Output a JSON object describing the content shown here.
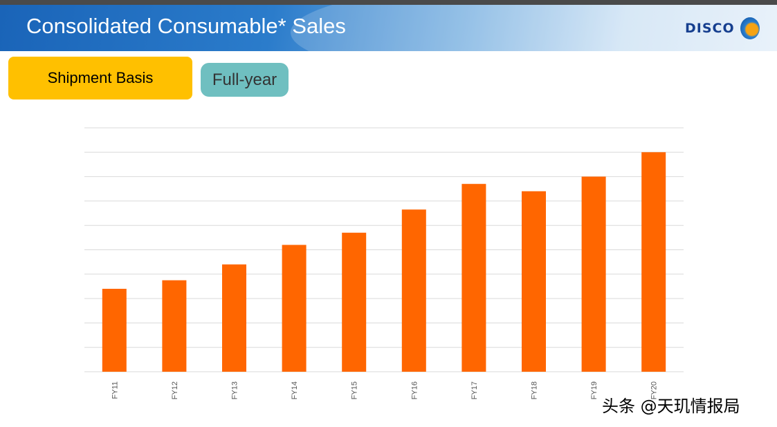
{
  "header": {
    "title": "Consolidated Consumable* Sales",
    "logo_text": "DISCO"
  },
  "buttons": {
    "basis": "Shipment Basis",
    "period": "Full-year"
  },
  "colors": {
    "bar": "#ff6600",
    "grid": "#d9d9d9",
    "header": "#1a64b8",
    "basis_button": "#ffc000",
    "period_button": "#6fbfc0"
  },
  "watermark": "头条 @天玑情报局",
  "chart_data": {
    "type": "bar",
    "title": "",
    "xlabel": "",
    "ylabel": "",
    "categories": [
      "FY11",
      "FY12",
      "FY13",
      "FY14",
      "FY15",
      "FY16",
      "FY17",
      "FY18",
      "FY19",
      "FY20"
    ],
    "values": [
      3.4,
      3.75,
      4.4,
      5.2,
      5.7,
      6.65,
      7.7,
      7.4,
      8.0,
      9.0
    ],
    "ylim": [
      0,
      10
    ],
    "y_axis_labels_shown": false,
    "grid": true,
    "tick_label_rotation": "vertical"
  }
}
